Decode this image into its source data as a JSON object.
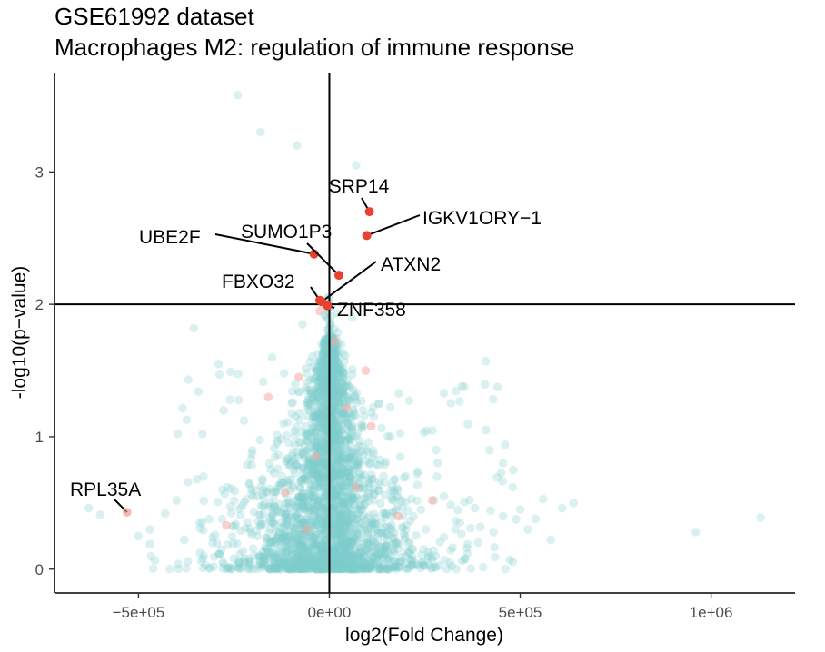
{
  "chart_data": {
    "type": "scatter",
    "title": "GSE61992 dataset",
    "subtitle": "Macrophages M2: regulation of immune response",
    "xlabel": "log2(Fold Change)",
    "ylabel": "-log10(p−value)",
    "xlim": [
      -720000,
      1220000
    ],
    "ylim": [
      -0.18,
      3.75
    ],
    "x_ticks": [
      {
        "value": -500000,
        "label": "−5e+05"
      },
      {
        "value": 0,
        "label": "0e+00"
      },
      {
        "value": 500000,
        "label": "5e+05"
      },
      {
        "value": 1000000,
        "label": "1e+06"
      }
    ],
    "y_ticks": [
      {
        "value": 0,
        "label": "0"
      },
      {
        "value": 1,
        "label": "1"
      },
      {
        "value": 2,
        "label": "2"
      },
      {
        "value": 3,
        "label": "3"
      }
    ],
    "thresholds": {
      "vline_x": 0,
      "hline_y": 2
    },
    "grid": false,
    "colors": {
      "background_points": "#7fcdcd",
      "highlight_points": "#e8412e",
      "faint_highlight": "#f4a9a0"
    },
    "highlighted_genes": [
      {
        "name": "SRP14",
        "x": 105000,
        "y": 2.7
      },
      {
        "name": "IGKV1ORY−1",
        "x": 98000,
        "y": 2.52
      },
      {
        "name": "UBE2F",
        "x": -40000,
        "y": 2.38
      },
      {
        "name": "SUMO1P3",
        "x": 25000,
        "y": 2.22
      },
      {
        "name": "ATXN2",
        "x": -20000,
        "y": 2.02
      },
      {
        "name": "FBXO32",
        "x": -25000,
        "y": 2.03
      },
      {
        "name": "ZNF358",
        "x": -5000,
        "y": 1.99
      },
      {
        "name": "RPL35A",
        "x": -530000,
        "y": 0.43
      }
    ]
  }
}
